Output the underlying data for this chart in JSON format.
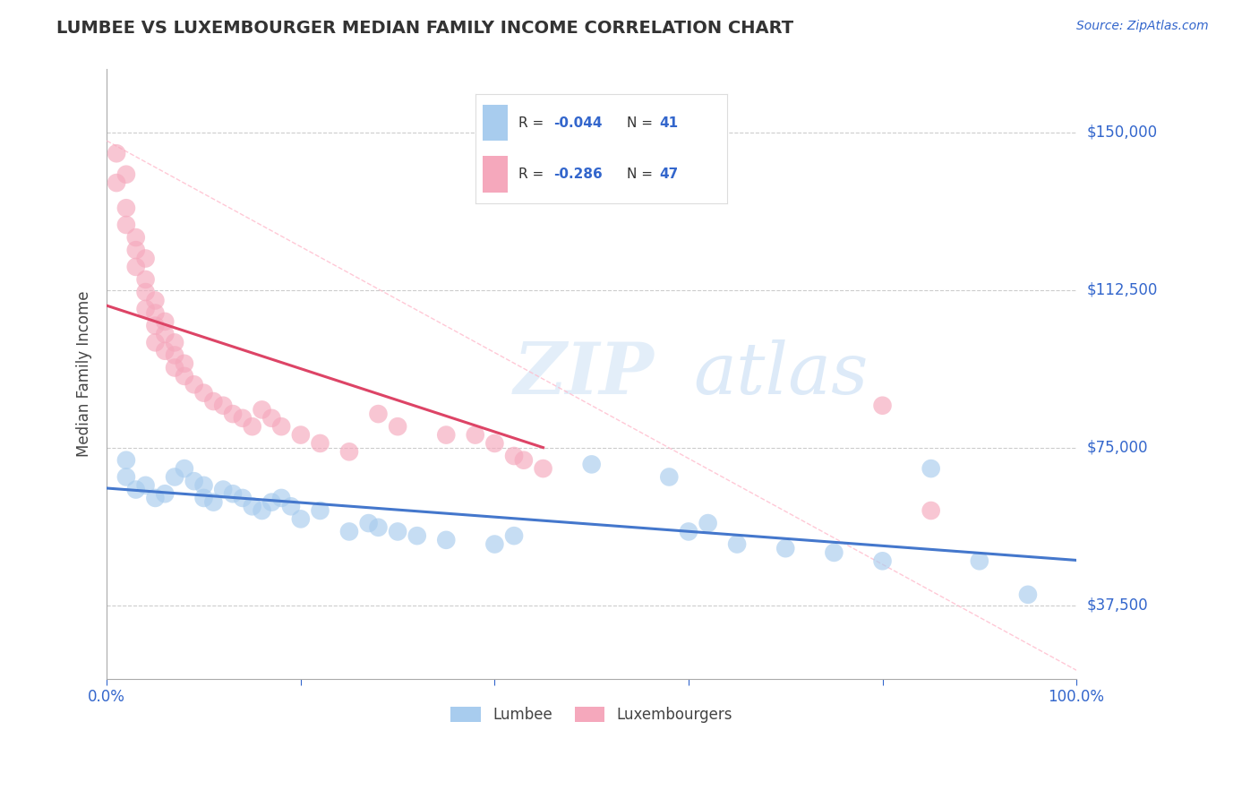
{
  "title": "LUMBEE VS LUXEMBOURGER MEDIAN FAMILY INCOME CORRELATION CHART",
  "source_text": "Source: ZipAtlas.com",
  "ylabel": "Median Family Income",
  "xlim": [
    0.0,
    1.0
  ],
  "ylim": [
    20000,
    165000
  ],
  "yticks": [
    37500,
    75000,
    112500,
    150000
  ],
  "ytick_labels": [
    "$37,500",
    "$75,000",
    "$112,500",
    "$150,000"
  ],
  "xticks": [
    0.0,
    0.2,
    0.4,
    0.6,
    0.8,
    1.0
  ],
  "xtick_labels": [
    "0.0%",
    "",
    "",
    "",
    "",
    "100.0%"
  ],
  "legend_r1": "-0.044",
  "legend_n1": "41",
  "legend_r2": "-0.286",
  "legend_n2": "47",
  "label1": "Lumbee",
  "label2": "Luxembourgers",
  "color1": "#a8ccee",
  "color2": "#f5a8bc",
  "line_color1": "#4477cc",
  "line_color2": "#dd4466",
  "diag_color": "#ffbbcc",
  "watermark": "ZIPatlas",
  "background_color": "#ffffff",
  "grid_color": "#cccccc",
  "title_color": "#333333",
  "axis_label_color": "#444444",
  "tick_color": "#3366cc",
  "lumbee_x": [
    0.02,
    0.02,
    0.03,
    0.04,
    0.05,
    0.06,
    0.07,
    0.08,
    0.09,
    0.1,
    0.1,
    0.11,
    0.12,
    0.13,
    0.14,
    0.15,
    0.16,
    0.17,
    0.18,
    0.19,
    0.2,
    0.22,
    0.25,
    0.27,
    0.28,
    0.3,
    0.32,
    0.35,
    0.4,
    0.42,
    0.5,
    0.58,
    0.6,
    0.62,
    0.65,
    0.7,
    0.75,
    0.8,
    0.85,
    0.9,
    0.95
  ],
  "lumbee_y": [
    68000,
    72000,
    65000,
    66000,
    63000,
    64000,
    68000,
    70000,
    67000,
    66000,
    63000,
    62000,
    65000,
    64000,
    63000,
    61000,
    60000,
    62000,
    63000,
    61000,
    58000,
    60000,
    55000,
    57000,
    56000,
    55000,
    54000,
    53000,
    52000,
    54000,
    71000,
    68000,
    55000,
    57000,
    52000,
    51000,
    50000,
    48000,
    70000,
    48000,
    40000
  ],
  "lux_x": [
    0.01,
    0.01,
    0.02,
    0.02,
    0.02,
    0.03,
    0.03,
    0.03,
    0.04,
    0.04,
    0.04,
    0.04,
    0.05,
    0.05,
    0.05,
    0.05,
    0.06,
    0.06,
    0.06,
    0.07,
    0.07,
    0.07,
    0.08,
    0.08,
    0.09,
    0.1,
    0.11,
    0.12,
    0.13,
    0.14,
    0.15,
    0.16,
    0.17,
    0.18,
    0.2,
    0.22,
    0.25,
    0.28,
    0.3,
    0.35,
    0.38,
    0.4,
    0.42,
    0.43,
    0.45,
    0.8,
    0.85
  ],
  "lux_y": [
    145000,
    138000,
    140000,
    132000,
    128000,
    125000,
    122000,
    118000,
    120000,
    115000,
    112000,
    108000,
    110000,
    107000,
    104000,
    100000,
    105000,
    102000,
    98000,
    100000,
    97000,
    94000,
    95000,
    92000,
    90000,
    88000,
    86000,
    85000,
    83000,
    82000,
    80000,
    84000,
    82000,
    80000,
    78000,
    76000,
    74000,
    83000,
    80000,
    78000,
    78000,
    76000,
    73000,
    72000,
    70000,
    85000,
    60000
  ]
}
